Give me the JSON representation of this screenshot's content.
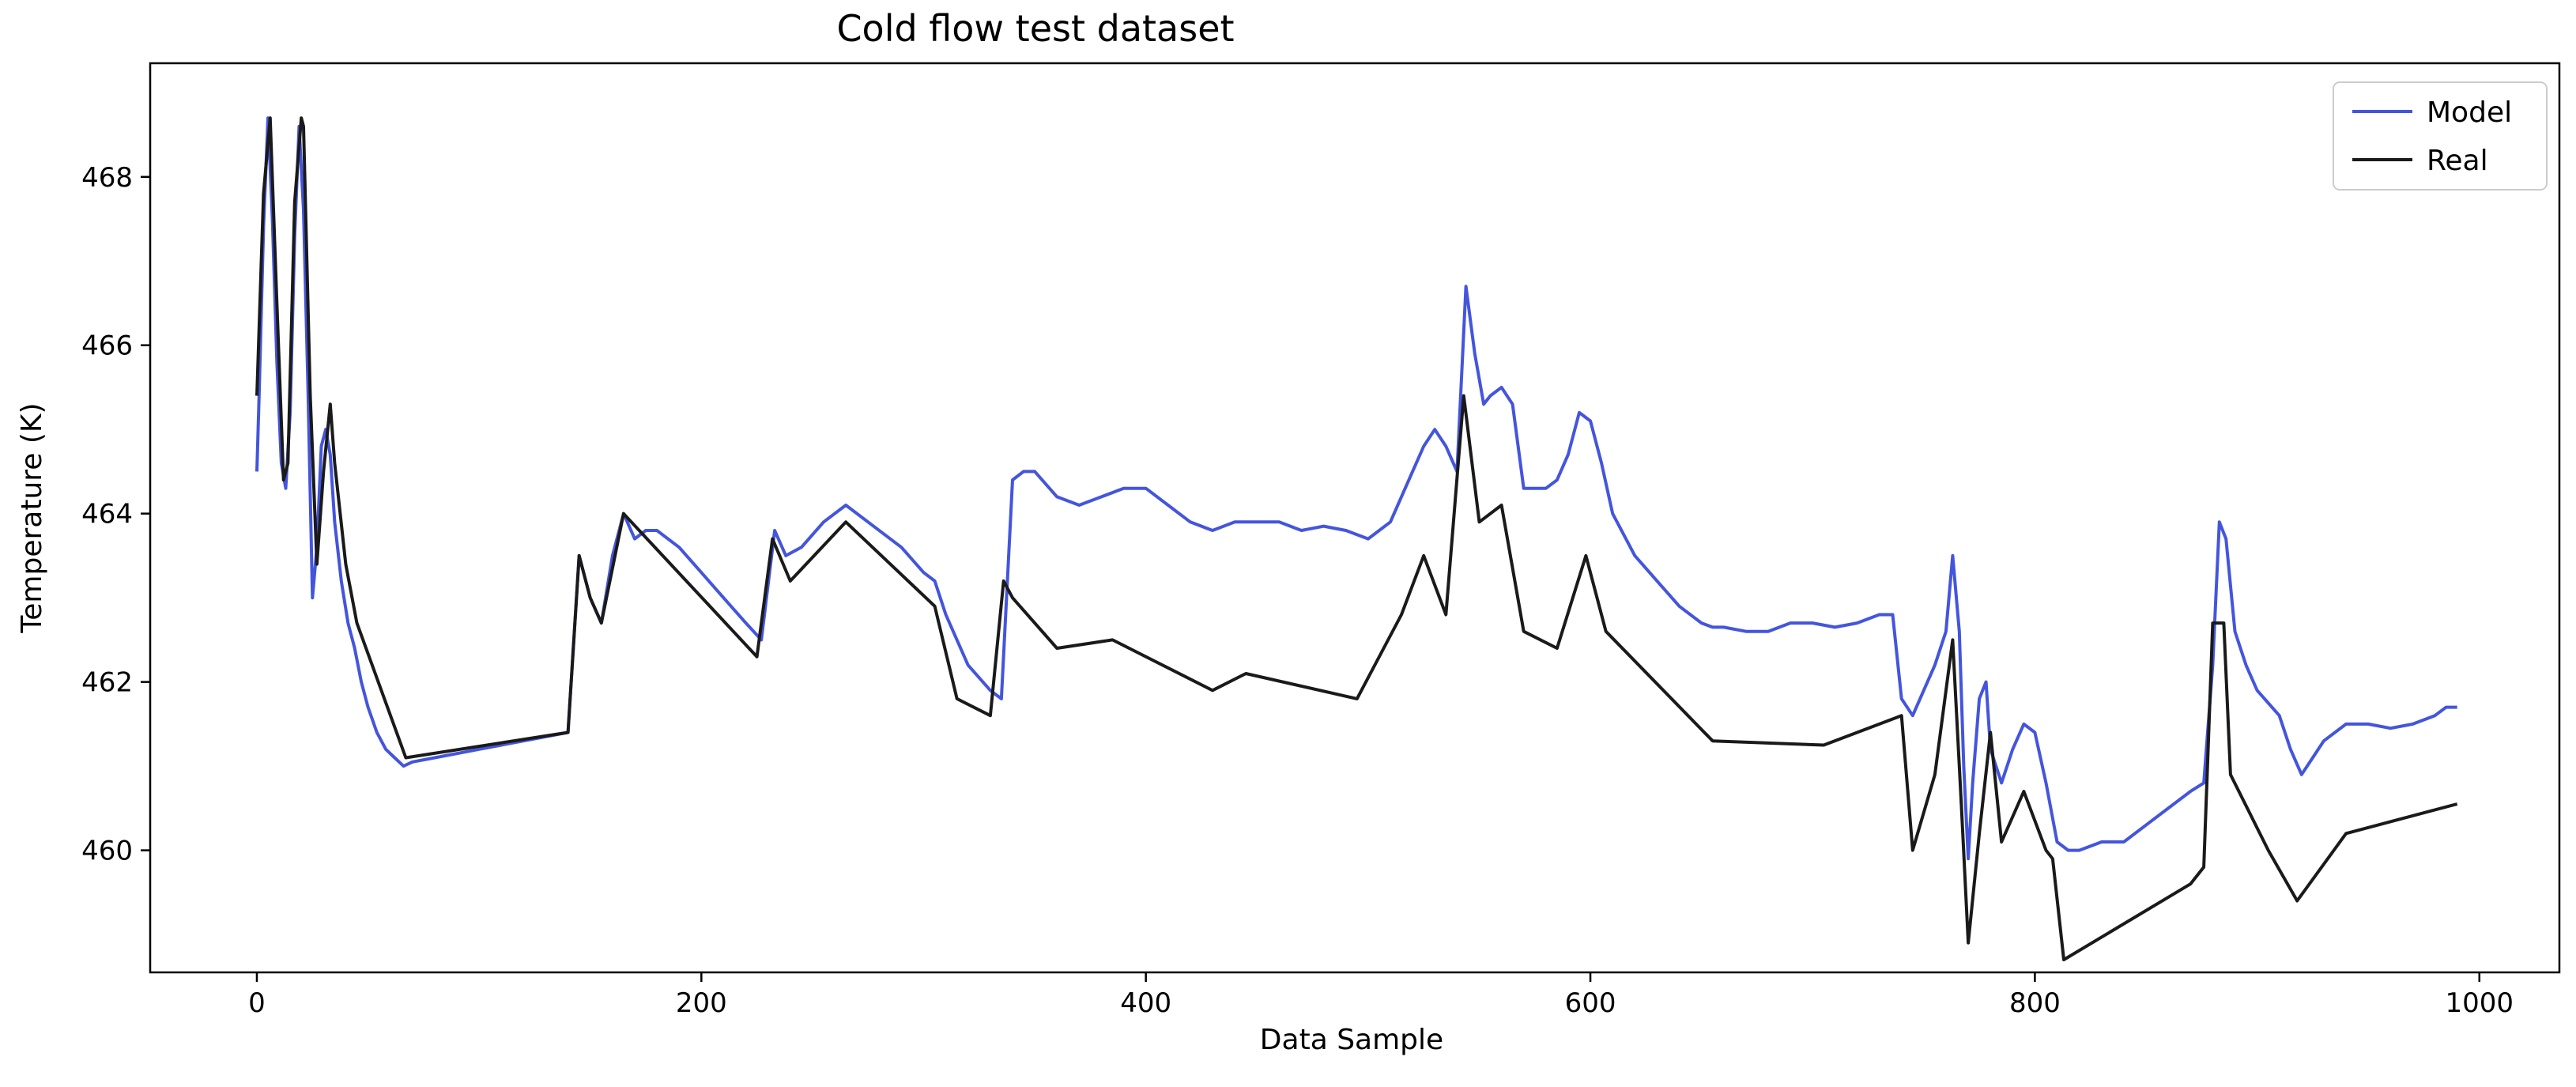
{
  "chart_data": {
    "type": "line",
    "title": "Cold flow test dataset",
    "xlabel": "Data Sample",
    "ylabel": "Temperature (K)",
    "xlim": [
      -48,
      1036
    ],
    "ylim": [
      458.55,
      469.35
    ],
    "xticks": [
      0,
      200,
      400,
      600,
      800,
      1000
    ],
    "yticks": [
      460,
      462,
      464,
      466,
      468
    ],
    "grid": false,
    "legend_position": "top-right",
    "series": [
      {
        "name": "Model",
        "color": "#4455dd",
        "x": [
          0,
          1,
          3,
          5,
          7,
          9,
          11,
          13,
          15,
          17,
          19,
          21,
          23,
          25,
          27,
          29,
          31,
          33,
          35,
          38,
          41,
          44,
          47,
          50,
          54,
          58,
          62,
          66,
          70,
          80,
          100,
          120,
          140,
          145,
          150,
          155,
          160,
          165,
          170,
          175,
          180,
          190,
          200,
          210,
          220,
          227,
          233,
          238,
          245,
          255,
          265,
          275,
          290,
          300,
          305,
          310,
          320,
          330,
          335,
          340,
          345,
          350,
          360,
          370,
          380,
          390,
          400,
          410,
          420,
          430,
          440,
          450,
          460,
          470,
          480,
          490,
          500,
          510,
          520,
          525,
          530,
          535,
          540,
          544,
          548,
          552,
          555,
          560,
          565,
          570,
          575,
          580,
          585,
          590,
          595,
          600,
          605,
          610,
          620,
          630,
          640,
          650,
          655,
          660,
          670,
          680,
          690,
          700,
          710,
          720,
          730,
          736,
          740,
          745,
          750,
          755,
          760,
          763,
          766,
          768,
          770,
          772,
          775,
          778,
          780,
          785,
          790,
          795,
          800,
          805,
          810,
          815,
          820,
          830,
          840,
          850,
          860,
          870,
          876,
          880,
          883,
          886,
          890,
          895,
          900,
          910,
          915,
          920,
          925,
          930,
          940,
          950,
          960,
          970,
          980,
          985,
          990
        ],
        "y": [
          464.5,
          465.4,
          467.4,
          468.7,
          467.5,
          465.8,
          464.6,
          464.3,
          465.2,
          467.3,
          468.6,
          467.6,
          465.5,
          463.0,
          463.6,
          464.8,
          465.0,
          464.7,
          463.9,
          463.2,
          462.7,
          462.4,
          462.0,
          461.7,
          461.4,
          461.2,
          461.1,
          461.0,
          461.05,
          461.1,
          461.2,
          461.3,
          461.4,
          463.5,
          463.0,
          462.7,
          463.5,
          464.0,
          463.7,
          463.8,
          463.8,
          463.6,
          463.3,
          463.0,
          462.7,
          462.5,
          463.8,
          463.5,
          463.6,
          463.9,
          464.1,
          463.9,
          463.6,
          463.3,
          463.2,
          462.8,
          462.2,
          461.9,
          461.8,
          464.4,
          464.5,
          464.5,
          464.2,
          464.1,
          464.2,
          464.3,
          464.3,
          464.1,
          463.9,
          463.8,
          463.9,
          463.9,
          463.9,
          463.8,
          463.85,
          463.8,
          463.7,
          463.9,
          464.5,
          464.8,
          465.0,
          464.8,
          464.5,
          466.7,
          465.9,
          465.3,
          465.4,
          465.5,
          465.3,
          464.3,
          464.3,
          464.3,
          464.4,
          464.7,
          465.2,
          465.1,
          464.6,
          464.0,
          463.5,
          463.2,
          462.9,
          462.7,
          462.65,
          462.65,
          462.6,
          462.6,
          462.7,
          462.7,
          462.65,
          462.7,
          462.8,
          462.8,
          461.8,
          461.6,
          461.9,
          462.2,
          462.6,
          463.5,
          462.6,
          461.0,
          459.9,
          460.8,
          461.8,
          462.0,
          461.2,
          460.8,
          461.2,
          461.5,
          461.4,
          460.8,
          460.1,
          460.0,
          460.0,
          460.1,
          460.1,
          460.3,
          460.5,
          460.7,
          460.8,
          462.2,
          463.9,
          463.7,
          462.6,
          462.2,
          461.9,
          461.6,
          461.2,
          460.9,
          461.1,
          461.3,
          461.5,
          461.5,
          461.45,
          461.5,
          461.6,
          461.7,
          461.7
        ]
      },
      {
        "name": "Real",
        "color": "#1a1a1a",
        "x": [
          0,
          3,
          6,
          9,
          12,
          14,
          17,
          20,
          21,
          24,
          27,
          30,
          33,
          35,
          40,
          45,
          67,
          140,
          145,
          150,
          155,
          165,
          225,
          232,
          240,
          265,
          305,
          315,
          330,
          336,
          340,
          360,
          385,
          430,
          445,
          495,
          515,
          525,
          535,
          543,
          550,
          560,
          570,
          585,
          598,
          607,
          655,
          705,
          740,
          745,
          755,
          763,
          767,
          770,
          775,
          780,
          785,
          795,
          805,
          808,
          813,
          870,
          876,
          880,
          885,
          888,
          905,
          918,
          940,
          990
        ],
        "y": [
          465.4,
          467.8,
          468.7,
          466.5,
          464.4,
          464.6,
          467.7,
          468.7,
          468.6,
          465.4,
          463.4,
          464.5,
          465.3,
          464.6,
          463.4,
          462.7,
          461.1,
          461.4,
          463.5,
          463.0,
          462.7,
          464.0,
          462.3,
          463.7,
          463.2,
          463.9,
          462.9,
          461.8,
          461.6,
          463.2,
          463.0,
          462.4,
          462.5,
          461.9,
          462.1,
          461.8,
          462.8,
          463.5,
          462.8,
          465.4,
          463.9,
          464.1,
          462.6,
          462.4,
          463.5,
          462.6,
          461.3,
          461.25,
          461.6,
          460.0,
          460.9,
          462.5,
          460.5,
          458.9,
          460.2,
          461.4,
          460.1,
          460.7,
          460.0,
          459.9,
          458.7,
          459.6,
          459.8,
          462.7,
          462.7,
          460.9,
          460.0,
          459.4,
          460.2,
          460.55
        ]
      }
    ]
  }
}
